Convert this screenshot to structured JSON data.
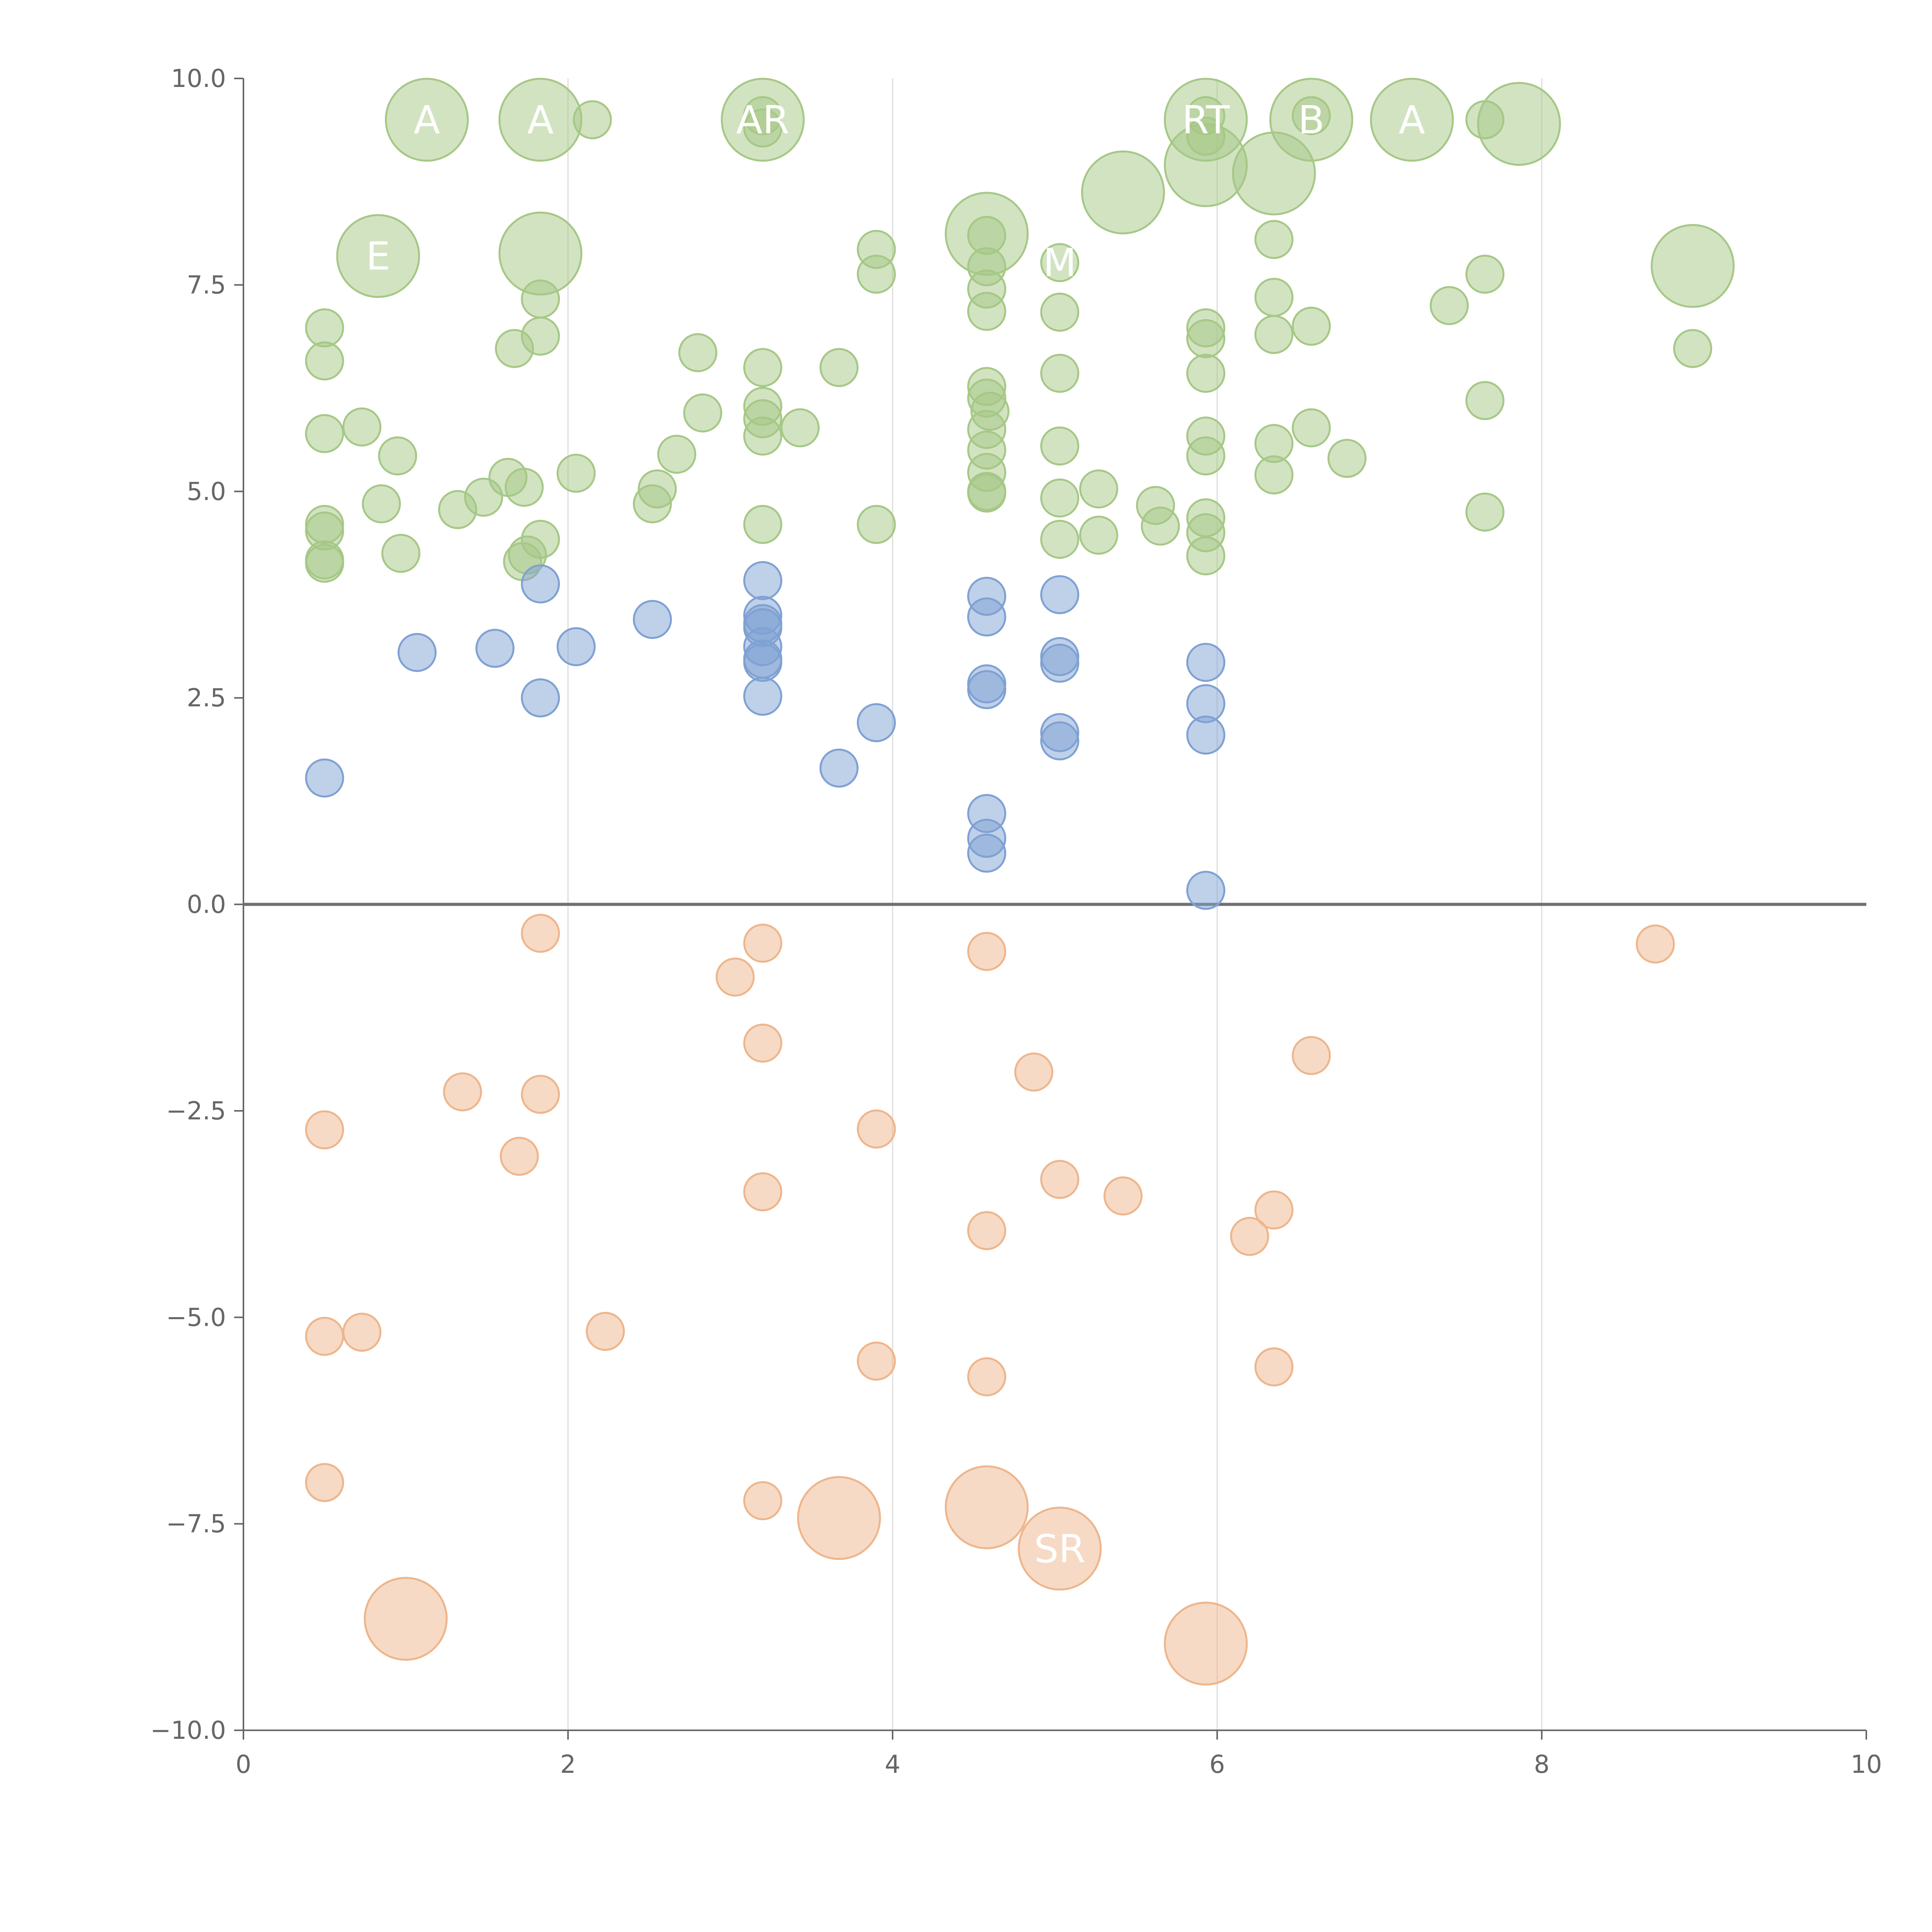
{
  "chart_data": {
    "type": "scatter",
    "title": "",
    "xlabel": "",
    "ylabel": "",
    "xlim": [
      0,
      10
    ],
    "ylim": [
      -10,
      10
    ],
    "xticks": [
      0,
      2,
      4,
      6,
      8,
      10
    ],
    "yticks": [
      -10,
      -7.5,
      -5,
      -2.5,
      0,
      2.5,
      5,
      7.5,
      10
    ],
    "xtick_labels": [
      "0",
      "2",
      "4",
      "6",
      "8",
      "10"
    ],
    "ytick_labels": [
      "−10.0",
      "−7.5",
      "−5.0",
      "−2.5",
      "0.0",
      "2.5",
      "5.0",
      "7.5",
      "10.0"
    ],
    "grid": "vertical lines at x ticks",
    "series": [
      {
        "name": "green",
        "color": "#a6c886",
        "points": [
          [
            1.13,
            9.5,
            3
          ],
          [
            1.83,
            9.5,
            3
          ],
          [
            2.15,
            9.5,
            1
          ],
          [
            3.2,
            9.5,
            3
          ],
          [
            3.2,
            9.55,
            1
          ],
          [
            3.2,
            9.4,
            1
          ],
          [
            5.93,
            9.5,
            3
          ],
          [
            5.93,
            9.55,
            1
          ],
          [
            5.93,
            9.3,
            1
          ],
          [
            6.58,
            9.5,
            3
          ],
          [
            6.58,
            9.55,
            1
          ],
          [
            7.2,
            9.5,
            3
          ],
          [
            7.65,
            9.5,
            1
          ],
          [
            7.86,
            9.45,
            3
          ],
          [
            0.83,
            7.85,
            3
          ],
          [
            1.83,
            7.88,
            3
          ],
          [
            4.58,
            8.12,
            3
          ],
          [
            4.58,
            8.1,
            1
          ],
          [
            5.42,
            8.62,
            3
          ],
          [
            5.93,
            8.95,
            3
          ],
          [
            6.35,
            8.85,
            3
          ],
          [
            8.93,
            7.73,
            3
          ],
          [
            6.35,
            8.05,
            1
          ],
          [
            5.03,
            7.77,
            1
          ],
          [
            3.9,
            7.93,
            1
          ],
          [
            3.9,
            7.63,
            1
          ],
          [
            4.58,
            7.72,
            1
          ],
          [
            4.58,
            7.45,
            1
          ],
          [
            4.58,
            7.18,
            1
          ],
          [
            1.83,
            7.33,
            1
          ],
          [
            1.83,
            6.88,
            1
          ],
          [
            1.67,
            6.73,
            1
          ],
          [
            0.5,
            6.98,
            1
          ],
          [
            0.5,
            6.58,
            1
          ],
          [
            2.8,
            6.68,
            1
          ],
          [
            3.2,
            6.5,
            1
          ],
          [
            3.67,
            6.5,
            1
          ],
          [
            5.03,
            7.17,
            1
          ],
          [
            5.03,
            6.43,
            1
          ],
          [
            5.93,
            6.98,
            1
          ],
          [
            5.93,
            6.85,
            1
          ],
          [
            5.93,
            6.43,
            1
          ],
          [
            6.35,
            7.35,
            1
          ],
          [
            6.35,
            6.9,
            1
          ],
          [
            6.58,
            7.0,
            1
          ],
          [
            7.43,
            7.25,
            1
          ],
          [
            7.65,
            7.63,
            1
          ],
          [
            7.65,
            6.1,
            1
          ],
          [
            8.93,
            6.73,
            1
          ],
          [
            0.5,
            5.7,
            1
          ],
          [
            0.73,
            5.78,
            1
          ],
          [
            0.95,
            5.43,
            1
          ],
          [
            2.83,
            5.95,
            1
          ],
          [
            3.2,
            6.03,
            1
          ],
          [
            3.2,
            5.88,
            1
          ],
          [
            3.2,
            5.67,
            1
          ],
          [
            3.43,
            5.77,
            1
          ],
          [
            2.67,
            5.45,
            1
          ],
          [
            4.58,
            6.27,
            1
          ],
          [
            4.58,
            6.13,
            1
          ],
          [
            4.6,
            5.97,
            1
          ],
          [
            4.58,
            5.75,
            1
          ],
          [
            4.58,
            5.5,
            1
          ],
          [
            4.58,
            5.23,
            1
          ],
          [
            4.58,
            5.0,
            1
          ],
          [
            4.58,
            4.98,
            1
          ],
          [
            5.03,
            5.55,
            1
          ],
          [
            5.93,
            5.67,
            1
          ],
          [
            5.93,
            5.43,
            1
          ],
          [
            6.35,
            5.58,
            1
          ],
          [
            6.58,
            5.77,
            1
          ],
          [
            6.8,
            5.4,
            1
          ],
          [
            6.35,
            5.2,
            1
          ],
          [
            1.63,
            5.17,
            1
          ],
          [
            1.73,
            5.05,
            1
          ],
          [
            2.05,
            5.22,
            1
          ],
          [
            1.48,
            4.93,
            1
          ],
          [
            1.32,
            4.78,
            1
          ],
          [
            0.85,
            4.85,
            1
          ],
          [
            2.55,
            5.03,
            1
          ],
          [
            2.52,
            4.85,
            1
          ],
          [
            5.27,
            5.03,
            1
          ],
          [
            5.03,
            4.92,
            1
          ],
          [
            5.62,
            4.83,
            1
          ],
          [
            5.65,
            4.58,
            1
          ],
          [
            5.27,
            4.47,
            1
          ],
          [
            5.03,
            4.42,
            1
          ],
          [
            5.93,
            4.68,
            1
          ],
          [
            5.93,
            4.5,
            1
          ],
          [
            5.93,
            4.22,
            1
          ],
          [
            7.65,
            4.75,
            1
          ],
          [
            0.5,
            4.6,
            1
          ],
          [
            0.5,
            4.52,
            1
          ],
          [
            0.5,
            4.17,
            1
          ],
          [
            0.5,
            4.13,
            1
          ],
          [
            0.97,
            4.25,
            1
          ],
          [
            1.83,
            4.42,
            1
          ],
          [
            1.75,
            4.23,
            1
          ],
          [
            1.72,
            4.15,
            1
          ],
          [
            3.2,
            4.6,
            1
          ],
          [
            3.9,
            4.6,
            1
          ]
        ]
      },
      {
        "name": "blue",
        "color": "#7fa1d3",
        "points": [
          [
            1.83,
            3.88,
            1
          ],
          [
            3.2,
            3.92,
            1
          ],
          [
            4.58,
            3.73,
            1
          ],
          [
            5.03,
            3.75,
            1
          ],
          [
            3.2,
            3.5,
            1
          ],
          [
            3.2,
            3.4,
            1
          ],
          [
            3.2,
            3.35,
            1
          ],
          [
            4.58,
            3.48,
            1
          ],
          [
            2.52,
            3.45,
            1
          ],
          [
            1.07,
            3.05,
            1
          ],
          [
            1.55,
            3.1,
            1
          ],
          [
            2.05,
            3.12,
            1
          ],
          [
            3.2,
            3.12,
            1
          ],
          [
            3.2,
            2.97,
            1
          ],
          [
            3.2,
            2.93,
            1
          ],
          [
            5.03,
            3.0,
            1
          ],
          [
            5.03,
            2.92,
            1
          ],
          [
            5.93,
            2.93,
            1
          ],
          [
            1.83,
            2.5,
            1
          ],
          [
            3.2,
            2.52,
            1
          ],
          [
            4.58,
            2.67,
            1
          ],
          [
            4.58,
            2.6,
            1
          ],
          [
            5.93,
            2.43,
            1
          ],
          [
            3.9,
            2.2,
            1
          ],
          [
            5.03,
            2.08,
            1
          ],
          [
            5.03,
            1.98,
            1
          ],
          [
            5.93,
            2.05,
            1
          ],
          [
            0.5,
            1.53,
            1
          ],
          [
            3.67,
            1.65,
            1
          ],
          [
            4.58,
            1.1,
            1
          ],
          [
            4.58,
            0.8,
            1
          ],
          [
            4.58,
            0.62,
            1
          ],
          [
            5.93,
            0.17,
            1
          ]
        ]
      },
      {
        "name": "orange",
        "color": "#eeb58c",
        "points": [
          [
            1.83,
            -0.35,
            1
          ],
          [
            3.2,
            -0.47,
            1
          ],
          [
            3.03,
            -0.88,
            1
          ],
          [
            4.58,
            -0.57,
            1
          ],
          [
            8.7,
            -0.48,
            1
          ],
          [
            3.2,
            -1.68,
            1
          ],
          [
            4.87,
            -2.03,
            1
          ],
          [
            6.58,
            -1.83,
            1
          ],
          [
            1.35,
            -2.27,
            1
          ],
          [
            1.83,
            -2.3,
            1
          ],
          [
            0.5,
            -2.73,
            1
          ],
          [
            3.9,
            -2.72,
            1
          ],
          [
            1.7,
            -3.05,
            1
          ],
          [
            3.2,
            -3.48,
            1
          ],
          [
            5.03,
            -3.33,
            1
          ],
          [
            5.42,
            -3.53,
            1
          ],
          [
            6.35,
            -3.7,
            1
          ],
          [
            4.58,
            -3.95,
            1
          ],
          [
            6.2,
            -4.02,
            1
          ],
          [
            2.23,
            -5.17,
            1
          ],
          [
            0.5,
            -5.23,
            1
          ],
          [
            0.73,
            -5.18,
            1
          ],
          [
            3.9,
            -5.53,
            1
          ],
          [
            6.35,
            -5.6,
            1
          ],
          [
            4.58,
            -5.72,
            1
          ],
          [
            0.5,
            -7.0,
            1
          ],
          [
            3.2,
            -7.22,
            1
          ],
          [
            3.67,
            -7.43,
            3
          ],
          [
            4.58,
            -7.3,
            3
          ],
          [
            5.03,
            -7.8,
            3
          ],
          [
            1.0,
            -8.65,
            3
          ],
          [
            5.93,
            -8.95,
            3
          ]
        ]
      }
    ],
    "annotations": [
      {
        "text": "A",
        "x": 1.13,
        "y": 9.5,
        "series": "green"
      },
      {
        "text": "A",
        "x": 1.83,
        "y": 9.5,
        "series": "green"
      },
      {
        "text": "AR",
        "x": 3.2,
        "y": 9.5,
        "series": "green"
      },
      {
        "text": "RT",
        "x": 5.93,
        "y": 9.5,
        "series": "green"
      },
      {
        "text": "B",
        "x": 6.58,
        "y": 9.5,
        "series": "green"
      },
      {
        "text": "A",
        "x": 7.2,
        "y": 9.5,
        "series": "green"
      },
      {
        "text": "M",
        "x": 5.03,
        "y": 7.77,
        "series": "green"
      },
      {
        "text": "E",
        "x": 0.83,
        "y": 7.85,
        "series": "green"
      },
      {
        "text": "SR",
        "x": 5.03,
        "y": -7.8,
        "series": "orange"
      }
    ]
  }
}
